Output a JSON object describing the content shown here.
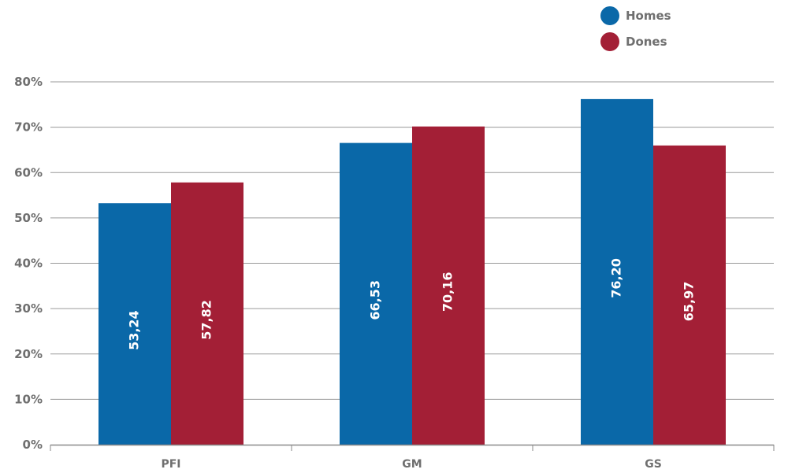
{
  "chart_data": {
    "type": "bar",
    "categories": [
      "PFI",
      "GM",
      "GS"
    ],
    "series": [
      {
        "name": "Homes",
        "color": "#0a68a8",
        "values": [
          53.24,
          66.53,
          76.2
        ],
        "labels": [
          "53,24",
          "66,53",
          "76,20"
        ]
      },
      {
        "name": "Dones",
        "color": "#a31f36",
        "values": [
          57.82,
          70.16,
          65.97
        ],
        "labels": [
          "57,82",
          "70,16",
          "65,97"
        ]
      }
    ],
    "yticks": [
      "0%",
      "10%",
      "20%",
      "30%",
      "40%",
      "50%",
      "60%",
      "70%",
      "80%"
    ],
    "ylim": [
      0,
      80
    ],
    "grid": true,
    "gridColor": "#9a9a9a",
    "legend": "top-right"
  }
}
